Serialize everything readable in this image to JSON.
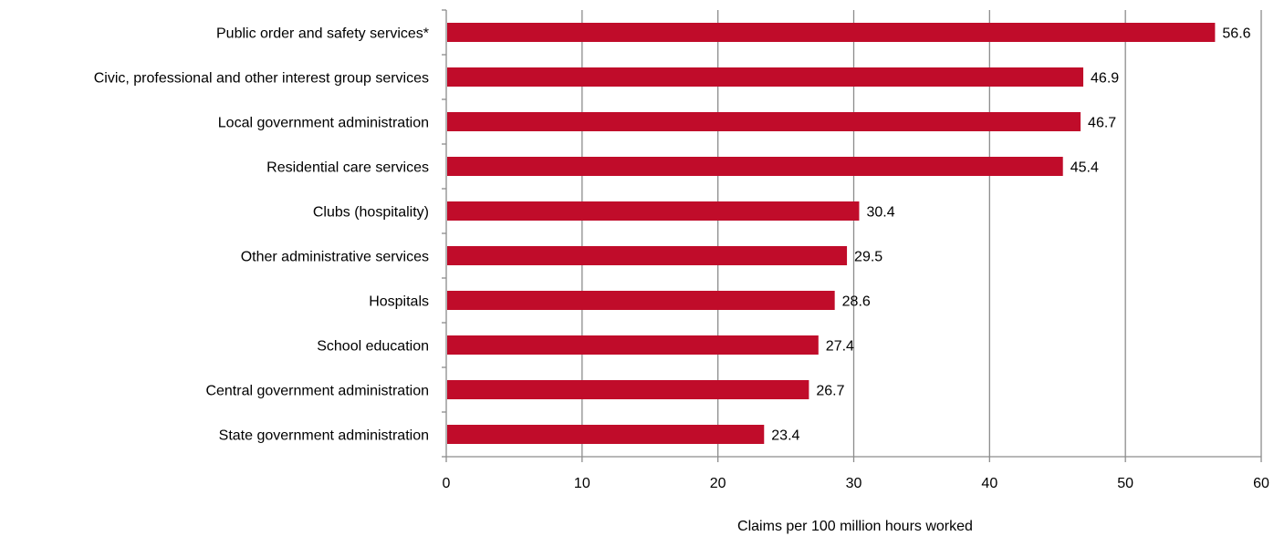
{
  "chart_data": {
    "type": "bar",
    "orientation": "horizontal",
    "categories": [
      "Public order and safety services*",
      "Civic, professional and other interest group services",
      "Local government administration",
      "Residential care services",
      "Clubs (hospitality)",
      "Other administrative services",
      "Hospitals",
      "School education",
      "Central government administration",
      "State government administration"
    ],
    "values": [
      56.6,
      46.9,
      46.7,
      45.4,
      30.4,
      29.5,
      28.6,
      27.4,
      26.7,
      23.4
    ],
    "value_labels": [
      "56.6",
      "46.9",
      "46.7",
      "45.4",
      "30.4",
      "29.5",
      "28.6",
      "27.4",
      "26.7",
      "23.4"
    ],
    "x_ticks": [
      "0",
      "10",
      "20",
      "30",
      "40",
      "50",
      "60"
    ],
    "xlim": [
      0,
      60
    ],
    "xlabel": "Claims per 100 million hours worked",
    "ylabel": "",
    "title": "",
    "grid": "vertical",
    "legend": "none",
    "bar_color": "#c00c2a",
    "grid_color": "#8c8c8c"
  }
}
